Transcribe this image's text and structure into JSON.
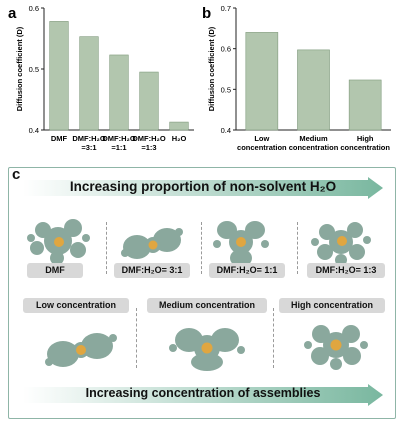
{
  "panels": {
    "a": "a",
    "b": "b",
    "c": "c"
  },
  "chart_data": [
    {
      "panel": "a",
      "type": "bar",
      "categories": [
        "DMF",
        "DMF:H₂O =3:1",
        "DMF:H₂O =1:1",
        "DMF:H₂O =1:3",
        "H₂O"
      ],
      "category_lines": [
        [
          "DMF"
        ],
        [
          "DMF:H₂O",
          "=3:1"
        ],
        [
          "DMF:H₂O",
          "=1:1"
        ],
        [
          "DMF:H₂O",
          "=1:3"
        ],
        [
          "H₂O"
        ]
      ],
      "values": [
        0.578,
        0.553,
        0.523,
        0.495,
        0.413
      ],
      "ylabel": "Diffusion coefficient (D)",
      "ylim": [
        0.4,
        0.6
      ],
      "yticks": [
        "0.4",
        "0.5",
        "0.6"
      ],
      "bar_color": "#b2c6ae"
    },
    {
      "panel": "b",
      "type": "bar",
      "categories": [
        "Low concentration",
        "Medium concentration",
        "High concentration"
      ],
      "category_lines": [
        [
          "Low",
          "concentration"
        ],
        [
          "Medium",
          "concentration"
        ],
        [
          "High",
          "concentration"
        ]
      ],
      "values": [
        0.64,
        0.597,
        0.523
      ],
      "ylabel": "Diffusion coefficient (D)",
      "ylim": [
        0.4,
        0.7
      ],
      "yticks": [
        "0.4",
        "0.5",
        "0.6",
        "0.7"
      ],
      "bar_color": "#b2c6ae"
    }
  ],
  "panel_c": {
    "top_arrow_label": "Increasing proportion of non-solvent H₂O",
    "bottom_arrow_label": "Increasing concentration of assemblies",
    "solvent_tags": [
      "DMF",
      "DMF:H₂O= 3:1",
      "DMF:H₂O= 1:1",
      "DMF:H₂O= 1:3"
    ],
    "concentration_tags": [
      "Low concentration",
      "Medium concentration",
      "High concentration"
    ],
    "colors": {
      "arrow": "#79b79f",
      "molecule": "#8aa89d",
      "core": "#e0a640",
      "tag": "#d8d8d8"
    }
  }
}
